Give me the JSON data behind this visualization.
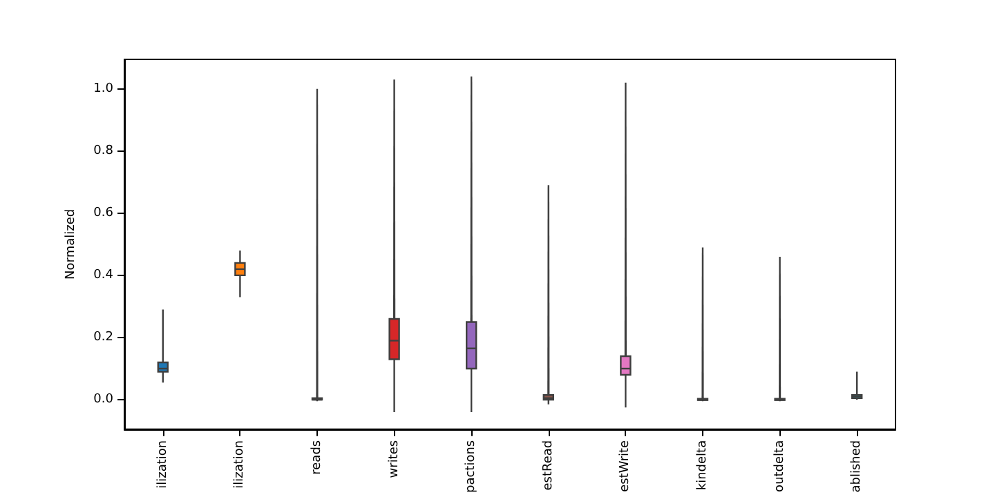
{
  "chart_data": {
    "type": "box",
    "ylabel": "Normalized",
    "categories": [
      "ilization",
      "ilization",
      "reads",
      "writes",
      "pactions",
      "estRead",
      "estWrite",
      "kindelta",
      "outdelta",
      "ablished"
    ],
    "colors": [
      "#1f77b4",
      "#ff7f0e",
      "#2ca02c",
      "#d62728",
      "#9467bd",
      "#8c564b",
      "#e377c2",
      "#7f7f7f",
      "#bcbd22",
      "#17becf"
    ],
    "boxes": [
      {
        "low": 0.055,
        "q1": 0.09,
        "median": 0.1,
        "q3": 0.12,
        "high": 0.29
      },
      {
        "low": 0.33,
        "q1": 0.4,
        "median": 0.42,
        "q3": 0.44,
        "high": 0.48
      },
      {
        "low": -0.005,
        "q1": 0,
        "median": 0,
        "q3": 0.005,
        "high": 1.0
      },
      {
        "low": -0.04,
        "q1": 0.13,
        "median": 0.19,
        "q3": 0.26,
        "high": 1.03
      },
      {
        "low": -0.04,
        "q1": 0.1,
        "median": 0.165,
        "q3": 0.25,
        "high": 1.04
      },
      {
        "low": -0.015,
        "q1": 0,
        "median": 0.005,
        "q3": 0.015,
        "high": 0.69
      },
      {
        "low": -0.025,
        "q1": 0.08,
        "median": 0.1,
        "q3": 0.14,
        "high": 1.02
      },
      {
        "low": -0.005,
        "q1": 0,
        "median": 0,
        "q3": 0.003,
        "high": 0.49
      },
      {
        "low": -0.005,
        "q1": 0,
        "median": 0,
        "q3": 0.003,
        "high": 0.46
      },
      {
        "low": 0,
        "q1": 0.005,
        "median": 0.01,
        "q3": 0.015,
        "high": 0.09
      }
    ],
    "ylim": [
      -0.095,
      1.095
    ],
    "yticks": [
      {
        "value": 0,
        "label": "0.0"
      },
      {
        "value": 0.2,
        "label": "0.2"
      },
      {
        "value": 0.4,
        "label": "0.4"
      },
      {
        "value": 0.6,
        "label": "0.6"
      },
      {
        "value": 0.8,
        "label": "0.8"
      },
      {
        "value": 1.0,
        "label": "1.0"
      }
    ],
    "grid": false
  }
}
